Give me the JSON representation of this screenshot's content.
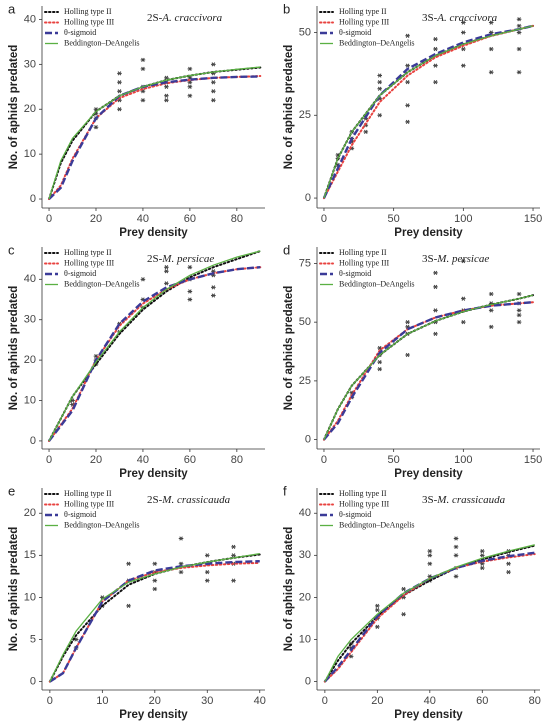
{
  "chart_data": [
    {
      "type": "line",
      "label": "a",
      "title": [
        "2S-",
        "A. craccivora"
      ],
      "xlabel": "Prey density",
      "ylabel": "No. of aphids predated",
      "xlim": [
        -3,
        92
      ],
      "ylim": [
        -2,
        43
      ],
      "xticks": [
        0,
        20,
        40,
        60,
        80
      ],
      "yticks": [
        0,
        10,
        20,
        30,
        40
      ],
      "x": [
        0,
        5,
        10,
        20,
        30,
        40,
        50,
        60,
        70,
        80,
        90
      ],
      "series": [
        {
          "name": "Holling type II",
          "color": "#111111",
          "dash": "dotted",
          "values": [
            0,
            8,
            13,
            19.5,
            23,
            25,
            26.5,
            27.5,
            28.3,
            28.8,
            29.3
          ]
        },
        {
          "name": "Holling type III",
          "color": "#e8423f",
          "dash": "dotted",
          "values": [
            0,
            3,
            9,
            18,
            22.5,
            24.5,
            25.8,
            26.5,
            27,
            27.2,
            27.4
          ]
        },
        {
          "name": "θ-sigmoid",
          "color": "#3b3b98",
          "dash": "dashed",
          "values": [
            0,
            2.5,
            8.5,
            18,
            23,
            25,
            26,
            26.6,
            27,
            27.2,
            27.3
          ]
        },
        {
          "name": "Beddington–DeAngelis",
          "color": "#5ab043",
          "dash": "solid",
          "values": [
            0,
            8.5,
            13.5,
            19.5,
            23,
            25,
            26.5,
            27.5,
            28.3,
            28.9,
            29.4
          ]
        }
      ],
      "points": {
        "x": [
          20,
          20,
          20,
          20,
          30,
          30,
          30,
          30,
          30,
          40,
          40,
          40,
          40,
          40,
          50,
          50,
          50,
          50,
          50,
          60,
          60,
          60,
          60,
          60,
          70,
          70,
          70,
          70,
          70
        ],
        "values": [
          16,
          18,
          19,
          20,
          20,
          22,
          24,
          26,
          28,
          22,
          24,
          25,
          29,
          31,
          22,
          23,
          25,
          26,
          27,
          23,
          25,
          26,
          27,
          29,
          22,
          24,
          26,
          28,
          30
        ]
      }
    },
    {
      "type": "line",
      "label": "b",
      "title": [
        "3S-",
        "A. craccivora"
      ],
      "xlabel": "Prey density",
      "ylabel": "No. of aphids predated",
      "xlim": [
        -5,
        155
      ],
      "ylim": [
        -3,
        58
      ],
      "xticks": [
        0,
        50,
        100,
        150
      ],
      "yticks": [
        0,
        25,
        50
      ],
      "x": [
        0,
        10,
        20,
        40,
        60,
        80,
        100,
        120,
        140,
        150
      ],
      "series": [
        {
          "name": "Holling type II",
          "color": "#111111",
          "dash": "dotted",
          "values": [
            0,
            12,
            20,
            31,
            38,
            43,
            46.5,
            49,
            51,
            52
          ]
        },
        {
          "name": "Holling type III",
          "color": "#e8423f",
          "dash": "dotted",
          "values": [
            0,
            8,
            16,
            29,
            37,
            42.5,
            46,
            49,
            51,
            52
          ]
        },
        {
          "name": "θ-sigmoid",
          "color": "#3b3b98",
          "dash": "dashed",
          "values": [
            0,
            9,
            18,
            31,
            39,
            43.5,
            47,
            49.5,
            51,
            52
          ]
        },
        {
          "name": "Beddington–DeAngelis",
          "color": "#5ab043",
          "dash": "solid",
          "values": [
            0,
            12,
            20,
            31,
            38,
            43,
            46.5,
            49,
            51,
            52
          ]
        }
      ],
      "points": {
        "x": [
          10,
          10,
          10,
          20,
          20,
          20,
          20,
          30,
          30,
          30,
          40,
          40,
          40,
          40,
          40,
          60,
          60,
          60,
          60,
          60,
          80,
          80,
          80,
          80,
          100,
          100,
          100,
          100,
          120,
          120,
          120,
          120,
          140,
          140,
          140,
          140,
          140
        ],
        "values": [
          10,
          12,
          13,
          15,
          17,
          18,
          20,
          20,
          22,
          24,
          25,
          30,
          33,
          35,
          37,
          23,
          28,
          35,
          40,
          49,
          35,
          40,
          45,
          48,
          40,
          45,
          50,
          53,
          38,
          45,
          50,
          53,
          38,
          45,
          50,
          52,
          54
        ]
      }
    },
    {
      "type": "line",
      "label": "c",
      "title": [
        "2S-",
        "M. persicae"
      ],
      "xlabel": "Prey density",
      "ylabel": "No. of aphids predated",
      "xlim": [
        -3,
        92
      ],
      "ylim": [
        -2,
        48
      ],
      "xticks": [
        0,
        20,
        40,
        60,
        80
      ],
      "yticks": [
        0,
        10,
        20,
        30,
        40
      ],
      "x": [
        0,
        10,
        20,
        30,
        40,
        50,
        60,
        70,
        80,
        90
      ],
      "series": [
        {
          "name": "Holling type II",
          "color": "#111111",
          "dash": "dotted",
          "values": [
            0,
            11,
            19,
            26.5,
            32.5,
            37,
            40.5,
            43,
            45,
            47
          ]
        },
        {
          "name": "Holling type III",
          "color": "#e8423f",
          "dash": "dotted",
          "values": [
            0,
            8,
            20,
            28.5,
            34,
            37.5,
            40,
            41.5,
            42.5,
            43
          ]
        },
        {
          "name": "θ-sigmoid",
          "color": "#3b3b98",
          "dash": "dashed",
          "values": [
            0,
            7.5,
            20,
            29,
            34.5,
            38,
            40,
            41.5,
            42.5,
            43
          ]
        },
        {
          "name": "Beddington–DeAngelis",
          "color": "#5ab043",
          "dash": "solid",
          "values": [
            0,
            11,
            19.5,
            27,
            33,
            37.5,
            41,
            43.5,
            45.5,
            47
          ]
        }
      ],
      "points": {
        "x": [
          10,
          10,
          20,
          20,
          20,
          30,
          30,
          40,
          40,
          40,
          50,
          50,
          50,
          60,
          60,
          60,
          60,
          70,
          70,
          70,
          70
        ],
        "values": [
          9,
          10,
          19,
          20,
          21,
          27,
          29,
          33,
          35,
          40,
          39,
          42,
          43,
          35,
          37,
          40,
          43,
          36,
          38,
          41,
          42
        ]
      }
    },
    {
      "type": "line",
      "label": "d",
      "title": [
        "3S-",
        "M. persicae"
      ],
      "xlabel": "Prey density",
      "ylabel": "No. of aphids predated",
      "xlim": [
        -5,
        155
      ],
      "ylim": [
        -4,
        82
      ],
      "xticks": [
        0,
        50,
        100,
        150
      ],
      "yticks": [
        0,
        25,
        50,
        75
      ],
      "x": [
        0,
        10,
        20,
        40,
        60,
        80,
        100,
        120,
        140,
        150
      ],
      "series": [
        {
          "name": "Holling type II",
          "color": "#111111",
          "dash": "dotted",
          "values": [
            0,
            13,
            23,
            36,
            45,
            50.5,
            54.5,
            57.5,
            60,
            61.5
          ]
        },
        {
          "name": "Holling type III",
          "color": "#e8423f",
          "dash": "dotted",
          "values": [
            0,
            8,
            19,
            38,
            47,
            52,
            55,
            57,
            58,
            58.5
          ]
        },
        {
          "name": "θ-sigmoid",
          "color": "#3b3b98",
          "dash": "dashed",
          "values": [
            0,
            7,
            18,
            37,
            47,
            52,
            55,
            57,
            58,
            58.5
          ]
        },
        {
          "name": "Beddington–DeAngelis",
          "color": "#5ab043",
          "dash": "solid",
          "values": [
            0,
            13,
            23,
            36,
            45,
            50.5,
            54.5,
            57.5,
            60,
            61.5
          ]
        }
      ],
      "points": {
        "x": [
          20,
          20,
          40,
          40,
          40,
          40,
          60,
          60,
          60,
          60,
          80,
          80,
          80,
          80,
          80,
          100,
          100,
          100,
          100,
          120,
          120,
          120,
          120,
          140,
          140,
          140,
          140,
          140
        ],
        "values": [
          18,
          20,
          30,
          33,
          36,
          39,
          36,
          45,
          48,
          50,
          45,
          50,
          55,
          65,
          71,
          50,
          55,
          60,
          76,
          48,
          55,
          58,
          62,
          50,
          53,
          55,
          58,
          62
        ]
      }
    },
    {
      "type": "line",
      "label": "e",
      "title": [
        "2S-",
        "M. crassicauda"
      ],
      "xlabel": "Prey density",
      "ylabel": "No. of aphids predated",
      "xlim": [
        -1.5,
        41
      ],
      "ylim": [
        -1,
        23
      ],
      "xticks": [
        0,
        10,
        20,
        30,
        40
      ],
      "yticks": [
        0,
        5,
        10,
        15,
        20
      ],
      "x": [
        0,
        2.5,
        5,
        10,
        15,
        20,
        25,
        30,
        35,
        40
      ],
      "series": [
        {
          "name": "Holling type II",
          "color": "#111111",
          "dash": "dotted",
          "values": [
            0,
            3,
            5.5,
            9,
            11.5,
            12.8,
            13.6,
            14.2,
            14.7,
            15.1
          ]
        },
        {
          "name": "Holling type III",
          "color": "#e8423f",
          "dash": "dotted",
          "values": [
            0,
            1,
            4,
            9.5,
            12,
            13,
            13.5,
            13.8,
            14,
            14.1
          ]
        },
        {
          "name": "θ-sigmoid",
          "color": "#3b3b98",
          "dash": "dashed",
          "values": [
            0,
            1,
            4,
            9.5,
            12,
            13.2,
            13.7,
            14,
            14.2,
            14.3
          ]
        },
        {
          "name": "Beddington–DeAngelis",
          "color": "#5ab043",
          "dash": "solid",
          "values": [
            0,
            3.2,
            6,
            9.8,
            11.8,
            12.8,
            13.6,
            14.2,
            14.7,
            15.2
          ]
        }
      ],
      "points": {
        "x": [
          5,
          5,
          10,
          10,
          15,
          15,
          15,
          20,
          20,
          20,
          20,
          25,
          25,
          25,
          30,
          30,
          30,
          30,
          35,
          35,
          35,
          35
        ],
        "values": [
          4,
          5,
          9,
          10,
          9,
          12,
          14,
          11,
          12,
          13,
          14,
          13,
          14,
          17,
          12,
          13,
          14,
          15,
          12,
          14,
          15,
          16
        ]
      }
    },
    {
      "type": "line",
      "label": "f",
      "title": [
        "3S-",
        "M. crassicauda"
      ],
      "xlabel": "Prey density",
      "ylabel": "No. of aphids predated",
      "xlim": [
        -3,
        82
      ],
      "ylim": [
        -2,
        46
      ],
      "xticks": [
        0,
        20,
        40,
        60,
        80
      ],
      "yticks": [
        0,
        10,
        20,
        30,
        40
      ],
      "x": [
        0,
        5,
        10,
        20,
        30,
        40,
        50,
        60,
        70,
        80
      ],
      "series": [
        {
          "name": "Holling type II",
          "color": "#111111",
          "dash": "dotted",
          "values": [
            0,
            5,
            9,
            15.5,
            20.5,
            24,
            27,
            29,
            30.8,
            32.3
          ]
        },
        {
          "name": "Holling type III",
          "color": "#e8423f",
          "dash": "dotted",
          "values": [
            0,
            3,
            7,
            15,
            20.5,
            24.5,
            27,
            28.5,
            29.5,
            30.3
          ]
        },
        {
          "name": "θ-sigmoid",
          "color": "#3b3b98",
          "dash": "dashed",
          "values": [
            0,
            3.5,
            7.5,
            15.5,
            21,
            24.5,
            27,
            28.7,
            29.8,
            30.6
          ]
        },
        {
          "name": "Beddington–DeAngelis",
          "color": "#5ab043",
          "dash": "solid",
          "values": [
            0,
            6,
            10,
            16,
            21,
            24.5,
            27.2,
            29.3,
            31,
            32.5
          ]
        }
      ],
      "points": {
        "x": [
          10,
          10,
          10,
          20,
          20,
          20,
          20,
          30,
          30,
          30,
          40,
          40,
          40,
          40,
          40,
          50,
          50,
          50,
          50,
          50,
          60,
          60,
          60,
          60,
          70,
          70,
          70,
          70
        ],
        "values": [
          6,
          8,
          9,
          13,
          15,
          17,
          18,
          16,
          20,
          22,
          24,
          25,
          28,
          30,
          31,
          25,
          27,
          30,
          32,
          34,
          27,
          28,
          30,
          31,
          26,
          28,
          30,
          31
        ]
      }
    }
  ]
}
